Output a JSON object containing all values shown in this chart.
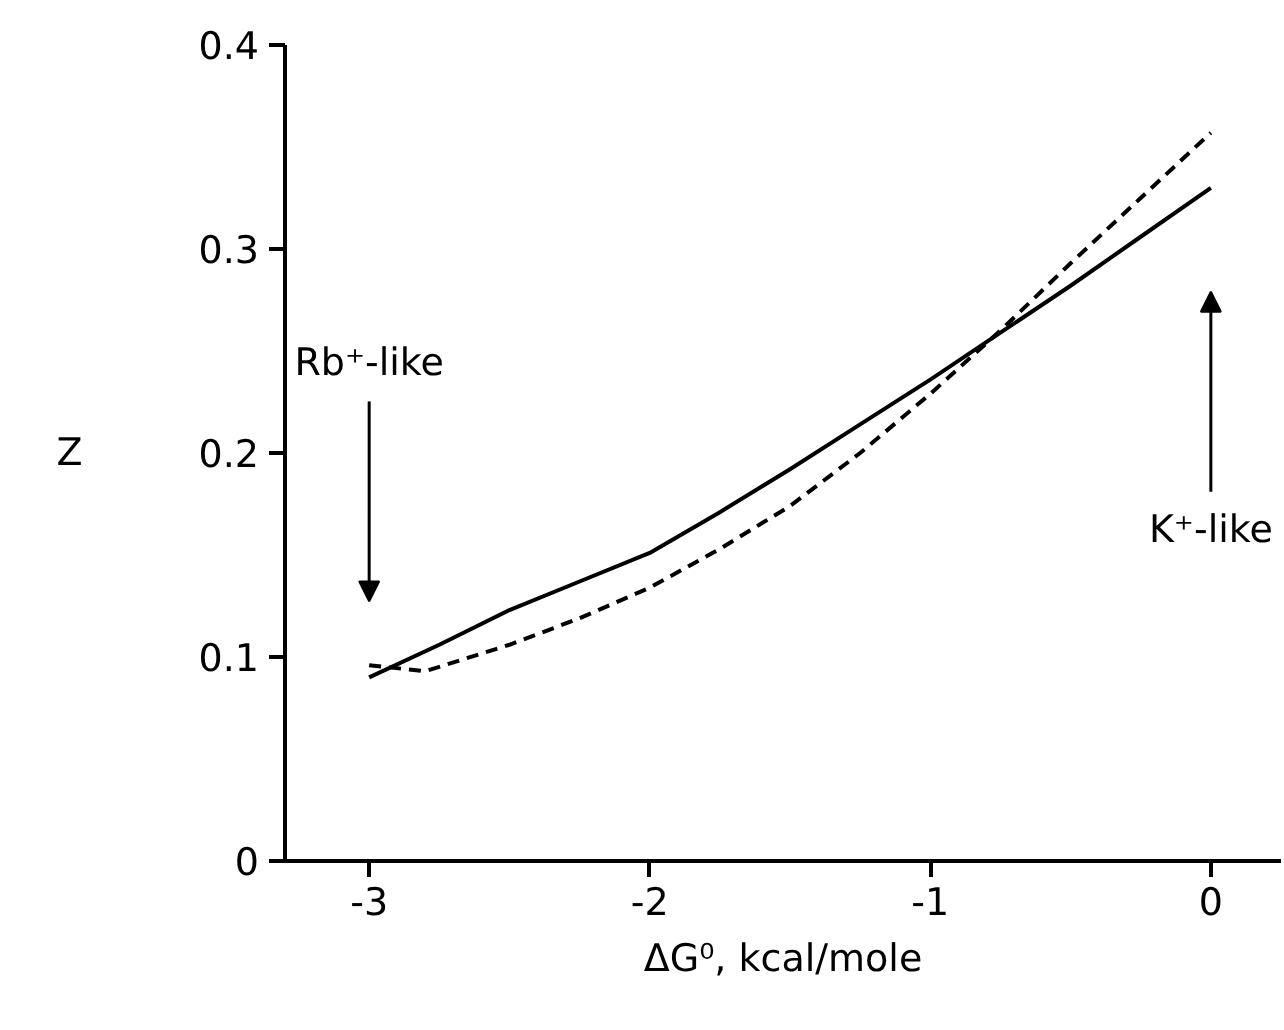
{
  "chart_data": {
    "type": "line",
    "xlabel": "ΔG⁰, kcal/mole",
    "ylabel": "Z",
    "xlim": [
      -3.3,
      0.25
    ],
    "ylim": [
      0,
      0.4
    ],
    "xticks": [
      -3,
      -2,
      -1,
      0
    ],
    "yticks": [
      0,
      0.1,
      0.2,
      0.3,
      0.4
    ],
    "series": [
      {
        "color": "#000000",
        "line_style": "solid",
        "x": [
          -3,
          -2.75,
          -2.5,
          -2.25,
          -2,
          -1.75,
          -1.5,
          -1.25,
          -1,
          -0.75,
          -0.5,
          -0.25,
          0
        ],
        "values": [
          0.09,
          0.106,
          0.123,
          0.137,
          0.151,
          0.171,
          0.192,
          0.214,
          0.236,
          0.259,
          0.282,
          0.306,
          0.33
        ]
      },
      {
        "color": "#000000",
        "line_style": "dashed",
        "x": [
          -3,
          -2.8,
          -2.5,
          -2.25,
          -2,
          -1.75,
          -1.5,
          -1.25,
          -1,
          -0.75,
          -0.5,
          -0.25,
          0
        ],
        "values": [
          0.096,
          0.093,
          0.106,
          0.119,
          0.134,
          0.153,
          0.174,
          0.2,
          0.229,
          0.26,
          0.293,
          0.325,
          0.357
        ]
      }
    ],
    "annotations": [
      "Rb⁺-like",
      "K⁺-like"
    ]
  }
}
